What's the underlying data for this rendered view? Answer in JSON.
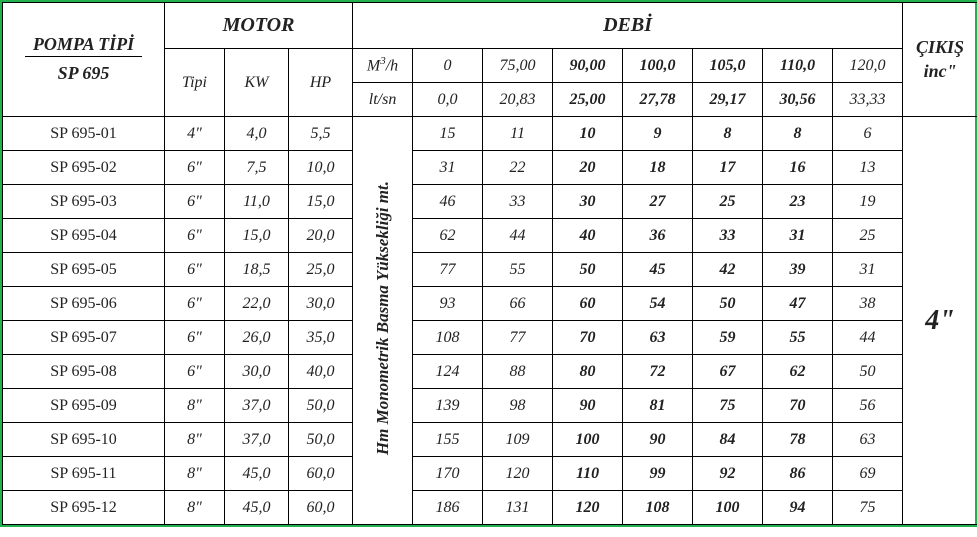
{
  "headers": {
    "pompa": "POMPA TİPİ",
    "series": "SP 695",
    "motor": "MOTOR",
    "tipi": "Tipi",
    "kw": "KW",
    "hp": "HP",
    "debi": "DEBİ",
    "m3h": "M³/h",
    "ltsn": "lt/sn",
    "vertical": "Hm Monometrik Basma Yüksekliği mt.",
    "cikis": "ÇIKIŞ",
    "inc": "inc\"",
    "outlet": "4\""
  },
  "flow_m3h": [
    "0",
    "75,00",
    "90,00",
    "100,0",
    "105,0",
    "110,0",
    "120,0"
  ],
  "flow_ltsn": [
    "0,0",
    "20,83",
    "25,00",
    "27,78",
    "29,17",
    "30,56",
    "33,33"
  ],
  "bold_cols": [
    false,
    false,
    true,
    true,
    true,
    true,
    false
  ],
  "rows": [
    {
      "model": "SP 695-01",
      "tipi": "4\"",
      "kw": "4,0",
      "hp": "5,5",
      "h": [
        "15",
        "11",
        "10",
        "9",
        "8",
        "8",
        "6"
      ]
    },
    {
      "model": "SP 695-02",
      "tipi": "6\"",
      "kw": "7,5",
      "hp": "10,0",
      "h": [
        "31",
        "22",
        "20",
        "18",
        "17",
        "16",
        "13"
      ]
    },
    {
      "model": "SP 695-03",
      "tipi": "6\"",
      "kw": "11,0",
      "hp": "15,0",
      "h": [
        "46",
        "33",
        "30",
        "27",
        "25",
        "23",
        "19"
      ]
    },
    {
      "model": "SP 695-04",
      "tipi": "6\"",
      "kw": "15,0",
      "hp": "20,0",
      "h": [
        "62",
        "44",
        "40",
        "36",
        "33",
        "31",
        "25"
      ]
    },
    {
      "model": "SP 695-05",
      "tipi": "6\"",
      "kw": "18,5",
      "hp": "25,0",
      "h": [
        "77",
        "55",
        "50",
        "45",
        "42",
        "39",
        "31"
      ]
    },
    {
      "model": "SP 695-06",
      "tipi": "6\"",
      "kw": "22,0",
      "hp": "30,0",
      "h": [
        "93",
        "66",
        "60",
        "54",
        "50",
        "47",
        "38"
      ]
    },
    {
      "model": "SP 695-07",
      "tipi": "6\"",
      "kw": "26,0",
      "hp": "35,0",
      "h": [
        "108",
        "77",
        "70",
        "63",
        "59",
        "55",
        "44"
      ]
    },
    {
      "model": "SP 695-08",
      "tipi": "6\"",
      "kw": "30,0",
      "hp": "40,0",
      "h": [
        "124",
        "88",
        "80",
        "72",
        "67",
        "62",
        "50"
      ]
    },
    {
      "model": "SP 695-09",
      "tipi": "8\"",
      "kw": "37,0",
      "hp": "50,0",
      "h": [
        "139",
        "98",
        "90",
        "81",
        "75",
        "70",
        "56"
      ]
    },
    {
      "model": "SP 695-10",
      "tipi": "8\"",
      "kw": "37,0",
      "hp": "50,0",
      "h": [
        "155",
        "109",
        "100",
        "90",
        "84",
        "78",
        "63"
      ]
    },
    {
      "model": "SP 695-11",
      "tipi": "8\"",
      "kw": "45,0",
      "hp": "60,0",
      "h": [
        "170",
        "120",
        "110",
        "99",
        "92",
        "86",
        "69"
      ]
    },
    {
      "model": "SP 695-12",
      "tipi": "8\"",
      "kw": "45,0",
      "hp": "60,0",
      "h": [
        "186",
        "131",
        "120",
        "108",
        "100",
        "94",
        "75"
      ]
    }
  ],
  "style": {
    "border_color": "#22b14c",
    "cell_border": "#000000",
    "text_color": "#222222",
    "font_family": "Times New Roman"
  }
}
